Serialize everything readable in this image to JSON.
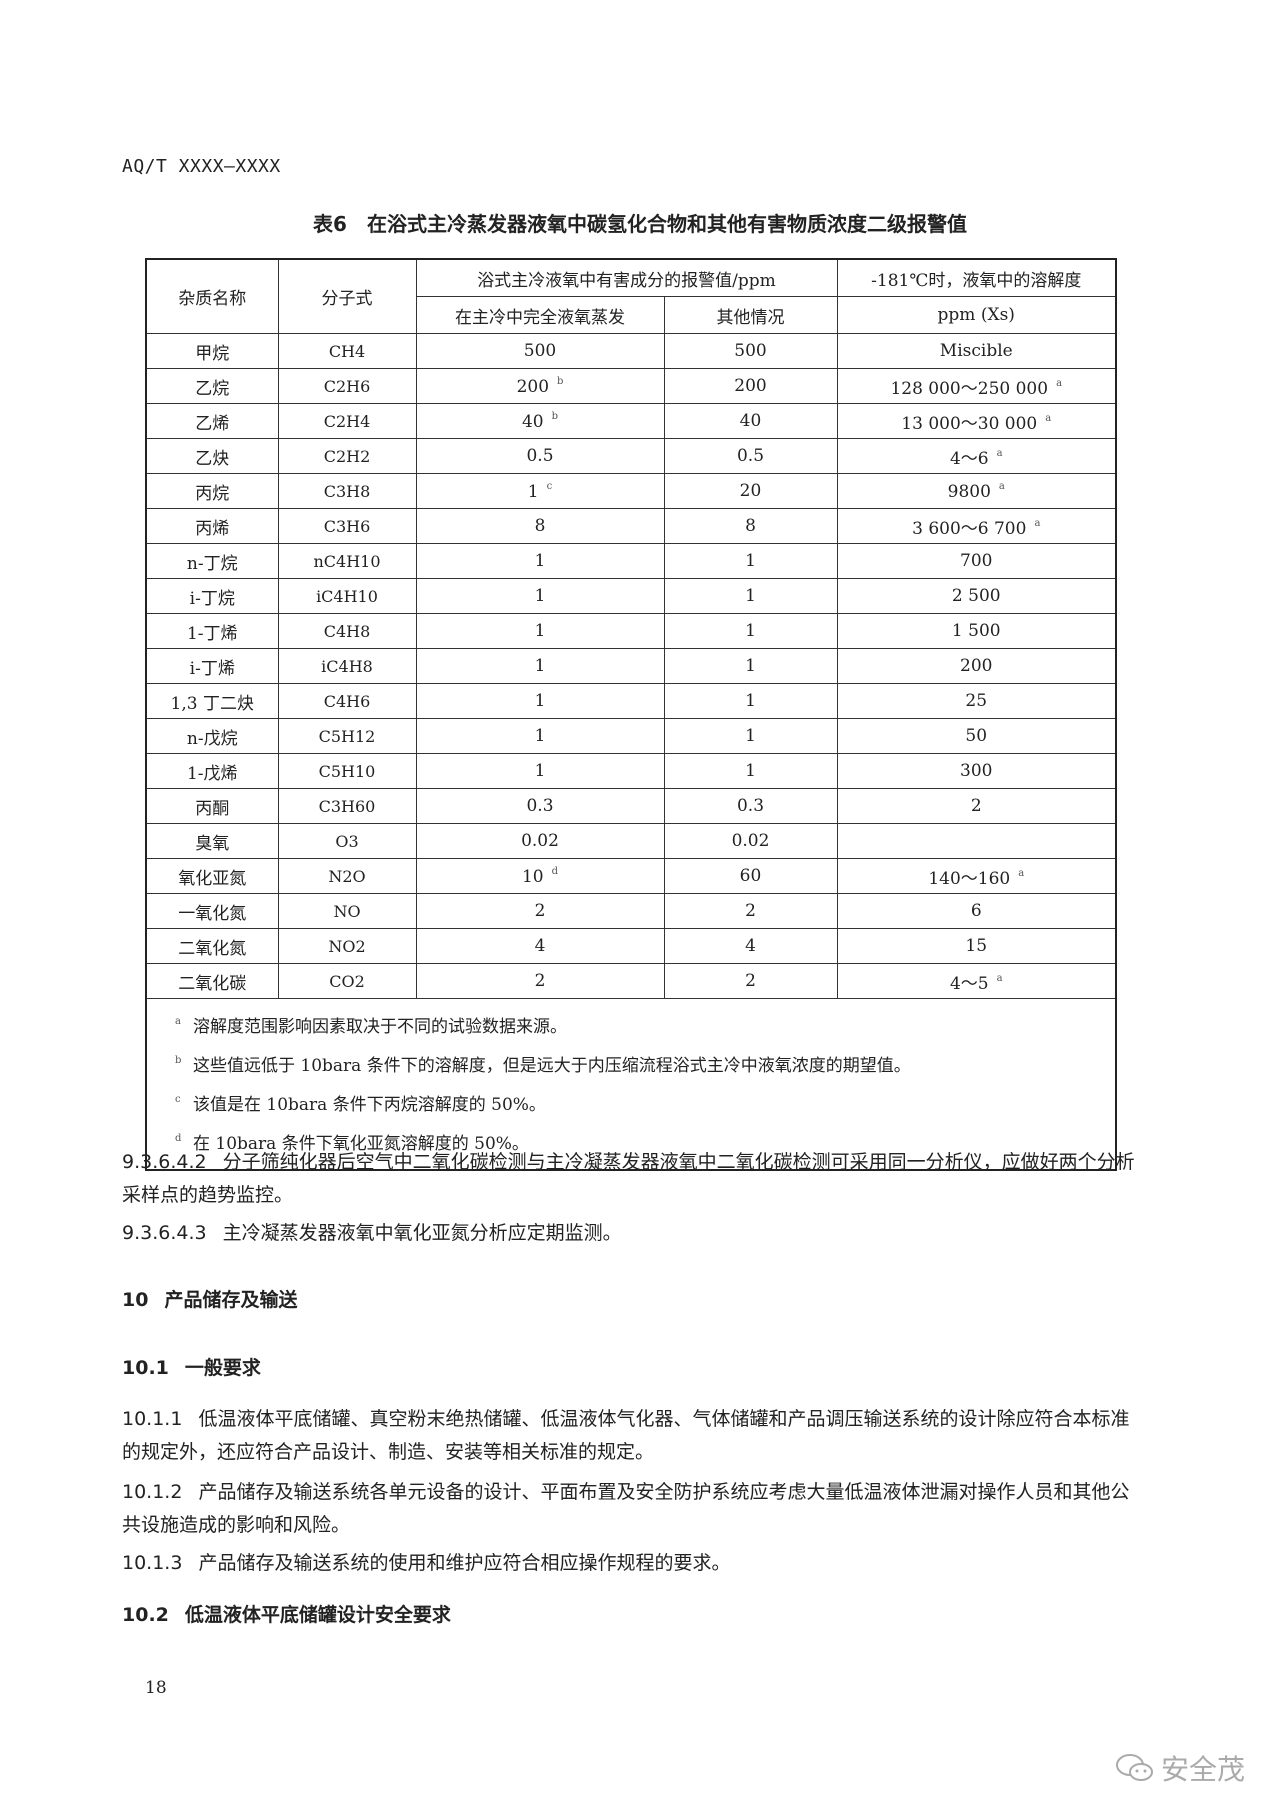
{
  "header": {
    "doc_code": "AQ/T XXXX—XXXX"
  },
  "table": {
    "title": "表6　在浴式主冷蒸发器液氧中碳氢化合物和其他有害物质浓度二级报警值",
    "headers": {
      "name": "杂质名称",
      "formula": "分子式",
      "alarm_group": "浴式主冷液氧中有害成分的报警值/ppm",
      "alarm_full": "在主冷中完全液氧蒸发",
      "alarm_other": "其他情况",
      "solubility_line1": "-181℃时，液氧中的溶解度",
      "solubility_line2": "ppm (Xs)"
    },
    "rows": [
      {
        "name": "甲烷",
        "formula": "CH4",
        "full": "500",
        "full_note": "",
        "other": "500",
        "sol": "Miscible",
        "sol_note": ""
      },
      {
        "name": "乙烷",
        "formula": "C2H6",
        "full": "200",
        "full_note": "b",
        "other": "200",
        "sol": "128 000～250 000",
        "sol_note": "a"
      },
      {
        "name": "乙烯",
        "formula": "C2H4",
        "full": "40",
        "full_note": "b",
        "other": "40",
        "sol": "13 000～30 000",
        "sol_note": "a"
      },
      {
        "name": "乙炔",
        "formula": "C2H2",
        "full": "0.5",
        "full_note": "",
        "other": "0.5",
        "sol": "4～6",
        "sol_note": "a"
      },
      {
        "name": "丙烷",
        "formula": "C3H8",
        "full": "1",
        "full_note": "c",
        "other": "20",
        "sol": "9800",
        "sol_note": "a"
      },
      {
        "name": "丙烯",
        "formula": "C3H6",
        "full": "8",
        "full_note": "",
        "other": "8",
        "sol": "3 600～6 700",
        "sol_note": "a"
      },
      {
        "name": "n-丁烷",
        "formula": "nC4H10",
        "full": "1",
        "full_note": "",
        "other": "1",
        "sol": "700",
        "sol_note": ""
      },
      {
        "name": "i-丁烷",
        "formula": "iC4H10",
        "full": "1",
        "full_note": "",
        "other": "1",
        "sol": "2 500",
        "sol_note": ""
      },
      {
        "name": "1-丁烯",
        "formula": "C4H8",
        "full": "1",
        "full_note": "",
        "other": "1",
        "sol": "1 500",
        "sol_note": ""
      },
      {
        "name": "i-丁烯",
        "formula": "iC4H8",
        "full": "1",
        "full_note": "",
        "other": "1",
        "sol": "200",
        "sol_note": ""
      },
      {
        "name": "1,3 丁二炔",
        "formula": "C4H6",
        "full": "1",
        "full_note": "",
        "other": "1",
        "sol": "25",
        "sol_note": ""
      },
      {
        "name": "n-戊烷",
        "formula": "C5H12",
        "full": "1",
        "full_note": "",
        "other": "1",
        "sol": "50",
        "sol_note": ""
      },
      {
        "name": "1-戊烯",
        "formula": "C5H10",
        "full": "1",
        "full_note": "",
        "other": "1",
        "sol": "300",
        "sol_note": ""
      },
      {
        "name": "丙酮",
        "formula": "C3H60",
        "full": "0.3",
        "full_note": "",
        "other": "0.3",
        "sol": "2",
        "sol_note": ""
      },
      {
        "name": "臭氧",
        "formula": "O3",
        "full": "0.02",
        "full_note": "",
        "other": "0.02",
        "sol": "",
        "sol_note": ""
      },
      {
        "name": "氧化亚氮",
        "formula": "N2O",
        "full": "10",
        "full_note": "d",
        "other": "60",
        "sol": "140～160",
        "sol_note": "a"
      },
      {
        "name": "一氧化氮",
        "formula": "NO",
        "full": "2",
        "full_note": "",
        "other": "2",
        "sol": "6",
        "sol_note": ""
      },
      {
        "name": "二氧化氮",
        "formula": "NO2",
        "full": "4",
        "full_note": "",
        "other": "4",
        "sol": "15",
        "sol_note": ""
      },
      {
        "name": "二氧化碳",
        "formula": "CO2",
        "full": "2",
        "full_note": "",
        "other": "2",
        "sol": "4～5",
        "sol_note": "a"
      }
    ],
    "notes": [
      {
        "mark": "a",
        "text": "溶解度范围影响因素取决于不同的试验数据来源。"
      },
      {
        "mark": "b",
        "text": "这些值远低于 10bara 条件下的溶解度，但是远大于内压缩流程浴式主冷中液氧浓度的期望值。"
      },
      {
        "mark": "c",
        "text": "该值是在 10bara 条件下丙烷溶解度的 50%。"
      },
      {
        "mark": "d",
        "text": "在 10bara 条件下氧化亚氮溶解度的 50%。"
      }
    ]
  },
  "body": {
    "p1_num": "9.3.6.4.2",
    "p1_text": "分子筛纯化器后空气中二氧化碳检测与主冷凝蒸发器液氧中二氧化碳检测可采用同一分析仪，应做好两个分析采样点的趋势监控。",
    "p2_num": "9.3.6.4.3",
    "p2_text": "主冷凝蒸发器液氧中氧化亚氮分析应定期监测。",
    "h10_num": "10",
    "h10_text": "产品储存及输送",
    "h101_num": "10.1",
    "h101_text": "一般要求",
    "p3_num": "10.1.1",
    "p3_text": "低温液体平底储罐、真空粉末绝热储罐、低温液体气化器、气体储罐和产品调压输送系统的设计除应符合本标准的规定外，还应符合产品设计、制造、安装等相关标准的规定。",
    "p4_num": "10.1.2",
    "p4_text": "产品储存及输送系统各单元设备的设计、平面布置及安全防护系统应考虑大量低温液体泄漏对操作人员和其他公共设施造成的影响和风险。",
    "p5_num": "10.1.3",
    "p5_text": "产品储存及输送系统的使用和维护应符合相应操作规程的要求。",
    "h102_num": "10.2",
    "h102_text": "低温液体平底储罐设计安全要求"
  },
  "footer": {
    "page_number": "18",
    "watermark": "安全茂",
    "watermark_icon": "wechat-icon"
  }
}
